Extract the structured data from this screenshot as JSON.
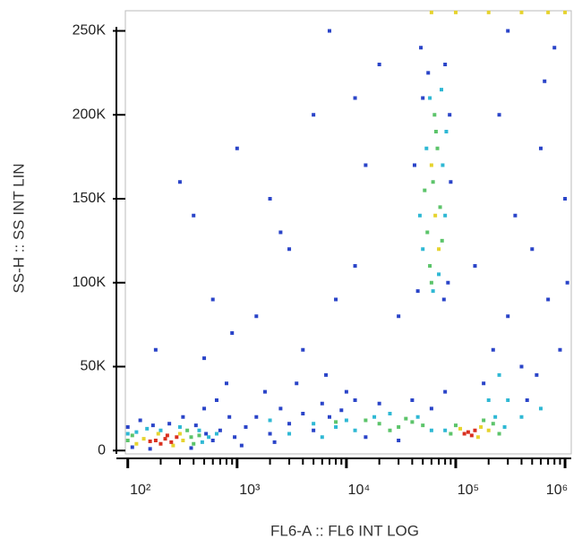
{
  "chart_data": {
    "type": "scatter",
    "x_label": "FL6-A :: FL6 INT LOG",
    "y_label": "SS-H :: SS INT LIN",
    "xscale": "log",
    "xlim": [
      95,
      1140000
    ],
    "ylim": [
      -2000,
      262000
    ],
    "xticks": [
      {
        "value": 100,
        "label": "10²"
      },
      {
        "value": 1000,
        "label": "10³"
      },
      {
        "value": 10000,
        "label": "10⁴"
      },
      {
        "value": 100000,
        "label": "10⁵"
      },
      {
        "value": 1000000,
        "label": "10⁶"
      }
    ],
    "xminorticks": [
      200,
      300,
      400,
      500,
      600,
      700,
      800,
      900,
      2000,
      3000,
      4000,
      5000,
      6000,
      7000,
      8000,
      9000,
      20000,
      30000,
      40000,
      50000,
      60000,
      70000,
      80000,
      90000,
      200000,
      300000,
      400000,
      500000,
      600000,
      700000,
      800000,
      900000
    ],
    "yticks": [
      0,
      {
        "value": 50000,
        "label": "50K"
      },
      {
        "value": 100000,
        "label": "100K"
      },
      {
        "value": 150000,
        "label": "150K"
      },
      {
        "value": 200000,
        "label": "200K"
      },
      {
        "value": 250000,
        "label": "250K"
      }
    ],
    "series": [
      {
        "color": "#2a44c8",
        "x": [
          100,
          130,
          170,
          240,
          320,
          420,
          520,
          600,
          700,
          850,
          950,
          110,
          160,
          380,
          500,
          650,
          800,
          1200,
          1500,
          2000,
          2500,
          3000,
          4000,
          5000,
          6000,
          7000,
          9000,
          12000,
          1800,
          3500,
          6500,
          10000,
          15000,
          20000,
          40000,
          30000,
          60000,
          80000,
          2200,
          1100,
          45000,
          50000,
          80000,
          85000,
          42000,
          90000,
          48000,
          78000,
          56000,
          88000,
          180000,
          220000,
          300000,
          400000,
          500000,
          600000,
          700000,
          350000,
          250000,
          800000,
          450000,
          900000,
          150000,
          1000000,
          650000,
          300000,
          1050000,
          550000,
          300,
          400,
          1000,
          2000,
          3000,
          5000,
          8000,
          15000,
          20000,
          12000,
          600,
          900,
          1500,
          4000,
          7000,
          30000,
          2500,
          500,
          180,
          12000
        ],
        "values": [
          14000,
          18000,
          15000,
          16000,
          20000,
          15000,
          10000,
          6000,
          12000,
          20000,
          8000,
          2000,
          1000,
          1500,
          25000,
          30000,
          40000,
          14000,
          20000,
          10000,
          25000,
          16000,
          22000,
          12000,
          28000,
          20000,
          24000,
          30000,
          35000,
          40000,
          45000,
          35000,
          8000,
          28000,
          30000,
          6000,
          25000,
          35000,
          5000,
          3000,
          95000,
          210000,
          230000,
          100000,
          170000,
          160000,
          240000,
          90000,
          225000,
          200000,
          40000,
          60000,
          80000,
          50000,
          120000,
          180000,
          90000,
          140000,
          200000,
          240000,
          30000,
          60000,
          110000,
          150000,
          220000,
          250000,
          100000,
          45000,
          160000,
          140000,
          180000,
          150000,
          120000,
          200000,
          90000,
          170000,
          230000,
          110000,
          90000,
          70000,
          80000,
          60000,
          250000,
          80000,
          130000,
          55000,
          60000,
          210000
        ]
      },
      {
        "color": "#2fb8d4",
        "x": [
          120,
          150,
          200,
          300,
          450,
          550,
          100,
          650,
          480,
          3000,
          5000,
          8000,
          10000,
          12000,
          18000,
          25000,
          45000,
          60000,
          2000,
          6000,
          80000,
          230000,
          280000,
          300000,
          250000,
          200000,
          50000,
          54000,
          76000,
          80000,
          58000,
          70000,
          47000,
          82000,
          62000,
          74000,
          400000,
          600000
        ],
        "values": [
          11000,
          13000,
          12000,
          14000,
          12000,
          8000,
          10000,
          10000,
          5000,
          10000,
          16000,
          14000,
          18000,
          12000,
          20000,
          22000,
          20000,
          12000,
          18000,
          8000,
          12000,
          20000,
          14000,
          30000,
          45000,
          30000,
          120000,
          180000,
          170000,
          140000,
          210000,
          105000,
          140000,
          190000,
          95000,
          215000,
          20000,
          25000
        ]
      },
      {
        "color": "#5cc46a",
        "x": [
          110,
          380,
          400,
          100,
          350,
          450,
          20000,
          30000,
          40000,
          25000,
          50000,
          15000,
          35000,
          8000,
          100000,
          90000,
          220000,
          180000,
          250000,
          55000,
          62000,
          68000,
          58000,
          72000,
          64000,
          52000,
          75000,
          60000,
          66000
        ],
        "values": [
          9000,
          8000,
          4000,
          6000,
          12000,
          9000,
          16000,
          14000,
          17000,
          12000,
          15000,
          18000,
          19000,
          17000,
          15000,
          10000,
          16000,
          18000,
          10000,
          130000,
          160000,
          180000,
          110000,
          145000,
          200000,
          155000,
          125000,
          100000,
          190000
        ]
      },
      {
        "color": "#e6d32e",
        "x": [
          140,
          320,
          300,
          190,
          260,
          120,
          170000,
          110000,
          160000,
          200000,
          65000,
          70000,
          60000,
          60000,
          100000,
          200000,
          400000,
          700000,
          1000000
        ],
        "values": [
          7000,
          6000,
          10000,
          10000,
          3000,
          4000,
          14000,
          13000,
          8000,
          12000,
          140000,
          120000,
          170000,
          261000,
          261000,
          261000,
          261000,
          261000,
          261000
        ]
      },
      {
        "color": "#d9301f",
        "x": [
          180,
          220,
          250,
          200,
          280,
          230,
          160,
          130000,
          150000,
          120000,
          140000
        ],
        "values": [
          6000,
          7000,
          5000,
          4000,
          8000,
          9000,
          5500,
          11000,
          12000,
          10000,
          9000
        ]
      }
    ]
  }
}
